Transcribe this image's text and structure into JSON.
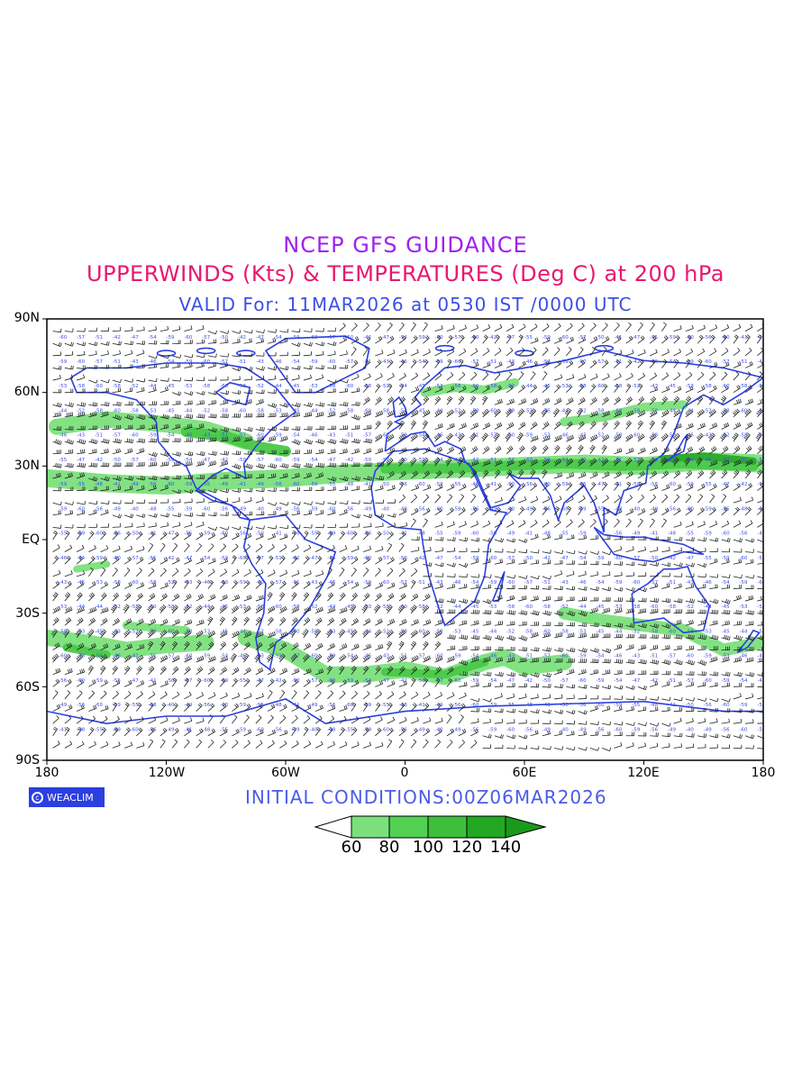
{
  "titles": {
    "line1": "NCEP GFS GUIDANCE",
    "line2": "UPPERWINDS (Kts) & TEMPERATURES (Deg C) at 200 hPa",
    "line3": "VALID For: 11MAR2026 at 0530 IST /0000 UTC"
  },
  "map": {
    "lat_labels": [
      "90N",
      "60N",
      "30N",
      "EQ",
      "30S",
      "60S",
      "90S"
    ],
    "lon_labels": [
      "180",
      "120W",
      "60W",
      "0",
      "60E",
      "120E",
      "180"
    ]
  },
  "footer": {
    "logo_text": "WEACLIM",
    "initial_conditions": "INITIAL CONDITIONS:00Z06MAR2026"
  },
  "legend": {
    "tick_labels": [
      "60",
      "80",
      "100",
      "120",
      "140"
    ],
    "colors": [
      "#ffffff",
      "#7be07b",
      "#52d052",
      "#3cc03c",
      "#22a822",
      "#1a9a1a"
    ]
  },
  "colors": {
    "title1": "#a020f0",
    "title2": "#e8186e",
    "title3": "#3c50e6",
    "coastline": "#2b3fe0",
    "jet": "#3cc83c"
  }
}
